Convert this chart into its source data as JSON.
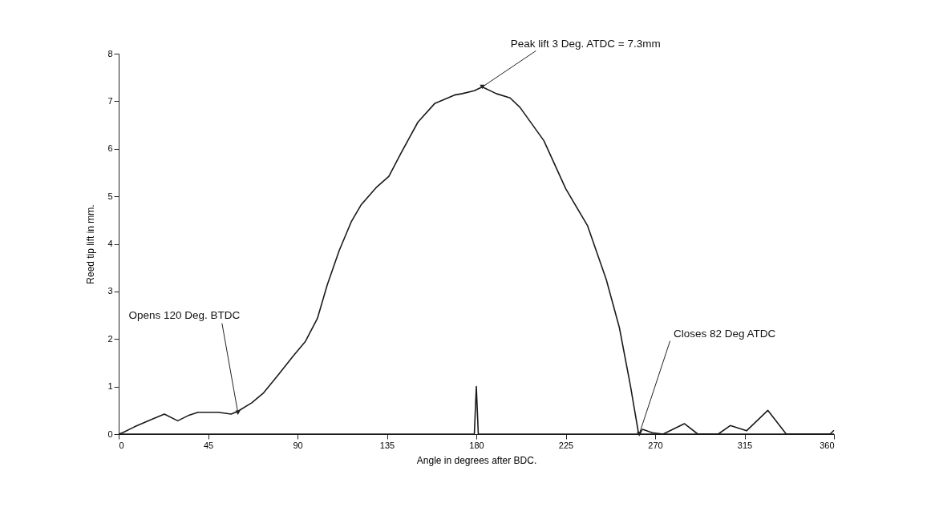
{
  "chart_data": {
    "type": "line",
    "xlabel": "Angle in degrees after BDC.",
    "ylabel": "Reed tip lift in mm.",
    "xlim": [
      0,
      360
    ],
    "ylim": [
      0,
      8
    ],
    "xticks": [
      0,
      45,
      90,
      135,
      180,
      225,
      270,
      315,
      360
    ],
    "yticks": [
      0,
      1,
      2,
      3,
      4,
      5,
      6,
      7,
      8
    ],
    "grid": false,
    "marker": "none",
    "line_style": "solid",
    "series": [
      {
        "color": "#1a1a1a",
        "x": [
          0,
          2,
          7.8,
          16,
          23,
          29.7,
          35,
          40,
          50,
          56.6,
          60,
          67,
          73,
          80,
          88,
          94,
          100,
          105,
          111,
          117,
          122,
          129.5,
          136,
          142,
          150.6,
          159,
          169,
          173,
          179,
          183,
          190,
          197,
          202,
          214,
          225,
          236,
          245.4,
          252,
          257.6,
          261.7,
          263.7,
          268.5,
          274,
          284.7,
          291.5,
          301.7,
          307.8,
          316,
          326.7,
          336,
          358,
          360
        ],
        "values": [
          0,
          0.03,
          0.15,
          0.3,
          0.42,
          0.28,
          0.39,
          0.46,
          0.46,
          0.42,
          0.48,
          0.66,
          0.87,
          1.23,
          1.65,
          1.95,
          2.43,
          3.14,
          3.86,
          4.46,
          4.82,
          5.18,
          5.42,
          5.9,
          6.56,
          6.95,
          7.13,
          7.16,
          7.22,
          7.3,
          7.16,
          7.07,
          6.87,
          6.17,
          5.16,
          4.38,
          3.25,
          2.24,
          1.01,
          0,
          0.1,
          0.03,
          0,
          0.22,
          0,
          0,
          0.18,
          0.07,
          0.5,
          0,
          0,
          0.08
        ]
      },
      {
        "color": "#1a1a1a",
        "x": [
          0,
          179,
          180,
          181,
          360
        ],
        "values": [
          0,
          0,
          1,
          0,
          0
        ]
      }
    ],
    "annotations": [
      {
        "text": "Opens 120 Deg. BTDC",
        "x": 60,
        "y": 0.45
      },
      {
        "text": "Peak lift 3 Deg. ATDC = 7.3mm",
        "x": 183,
        "y": 7.3
      },
      {
        "text": "Closes 82 Deg ATDC",
        "x": 262,
        "y": 0
      }
    ]
  }
}
